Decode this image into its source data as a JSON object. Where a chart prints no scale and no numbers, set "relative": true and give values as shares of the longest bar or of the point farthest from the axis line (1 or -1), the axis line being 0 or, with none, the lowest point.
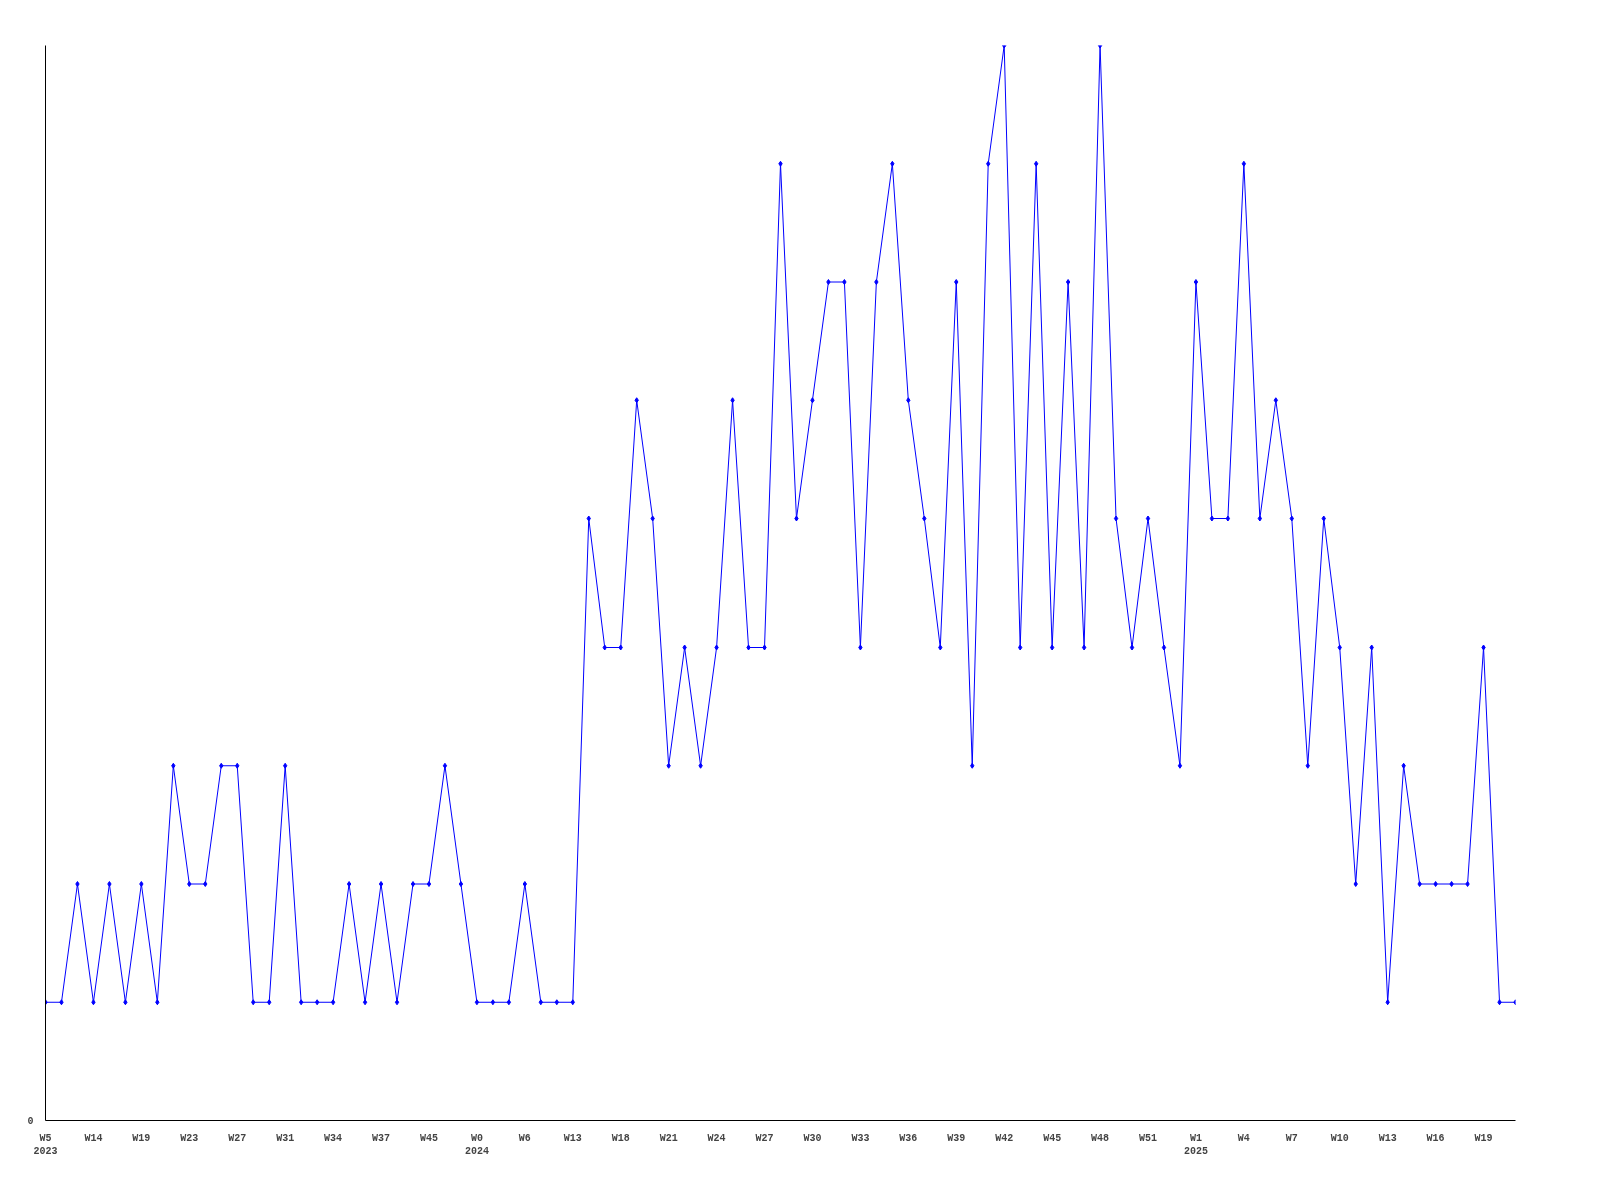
{
  "chart_data": {
    "type": "line",
    "relative": true,
    "annotations": [
      "0"
    ],
    "marker": "diamond",
    "line_style": "solid",
    "categories": [
      "W5\n2023",
      null,
      null,
      "W14",
      null,
      null,
      "W19",
      null,
      null,
      "W23",
      null,
      null,
      "W27",
      null,
      null,
      "W31",
      null,
      null,
      "W34",
      null,
      null,
      "W37",
      null,
      null,
      "W45",
      null,
      null,
      "W0\n2024",
      null,
      null,
      "W6",
      null,
      null,
      "W13",
      null,
      null,
      "W18",
      null,
      null,
      "W21",
      null,
      null,
      "W24",
      null,
      null,
      "W27",
      null,
      null,
      "W30",
      null,
      null,
      "W33",
      null,
      null,
      "W36",
      null,
      null,
      "W39",
      null,
      null,
      "W42",
      null,
      null,
      "W45",
      null,
      null,
      "W48",
      null,
      null,
      "W51",
      null,
      null,
      "W1\n2025",
      null,
      null,
      "W4",
      null,
      null,
      "W7",
      null,
      null,
      "W10",
      null,
      null,
      "W13",
      null,
      null,
      "W16",
      null,
      null,
      "W19",
      null,
      null
    ],
    "series": [
      {
        "color": "#0000ff",
        "values": [
          0.11,
          0.11,
          0.22,
          0.11,
          0.22,
          0.11,
          0.22,
          0.11,
          0.33,
          0.22,
          0.22,
          0.33,
          0.33,
          0.11,
          0.11,
          0.33,
          0.11,
          0.11,
          0.11,
          0.22,
          0.11,
          0.22,
          0.11,
          0.22,
          0.22,
          0.33,
          0.22,
          0.11,
          0.11,
          0.11,
          0.22,
          0.11,
          0.11,
          0.11,
          0.56,
          0.44,
          0.44,
          0.67,
          0.56,
          0.33,
          0.44,
          0.33,
          0.44,
          0.67,
          0.44,
          0.44,
          0.89,
          0.56,
          0.67,
          0.78,
          0.78,
          0.44,
          0.78,
          0.89,
          0.67,
          0.56,
          0.44,
          0.78,
          0.33,
          0.89,
          1,
          0.44,
          0.89,
          0.44,
          0.78,
          0.44,
          1,
          0.56,
          0.44,
          0.56,
          0.44,
          0.33,
          0.78,
          0.56,
          0.56,
          0.89,
          0.56,
          0.67,
          0.56,
          0.33,
          0.56,
          0.44,
          0.22,
          0.44,
          0.11,
          0.33,
          0.22,
          0.22,
          0.22,
          0.22,
          0.44,
          0.11,
          0.11
        ]
      }
    ]
  }
}
